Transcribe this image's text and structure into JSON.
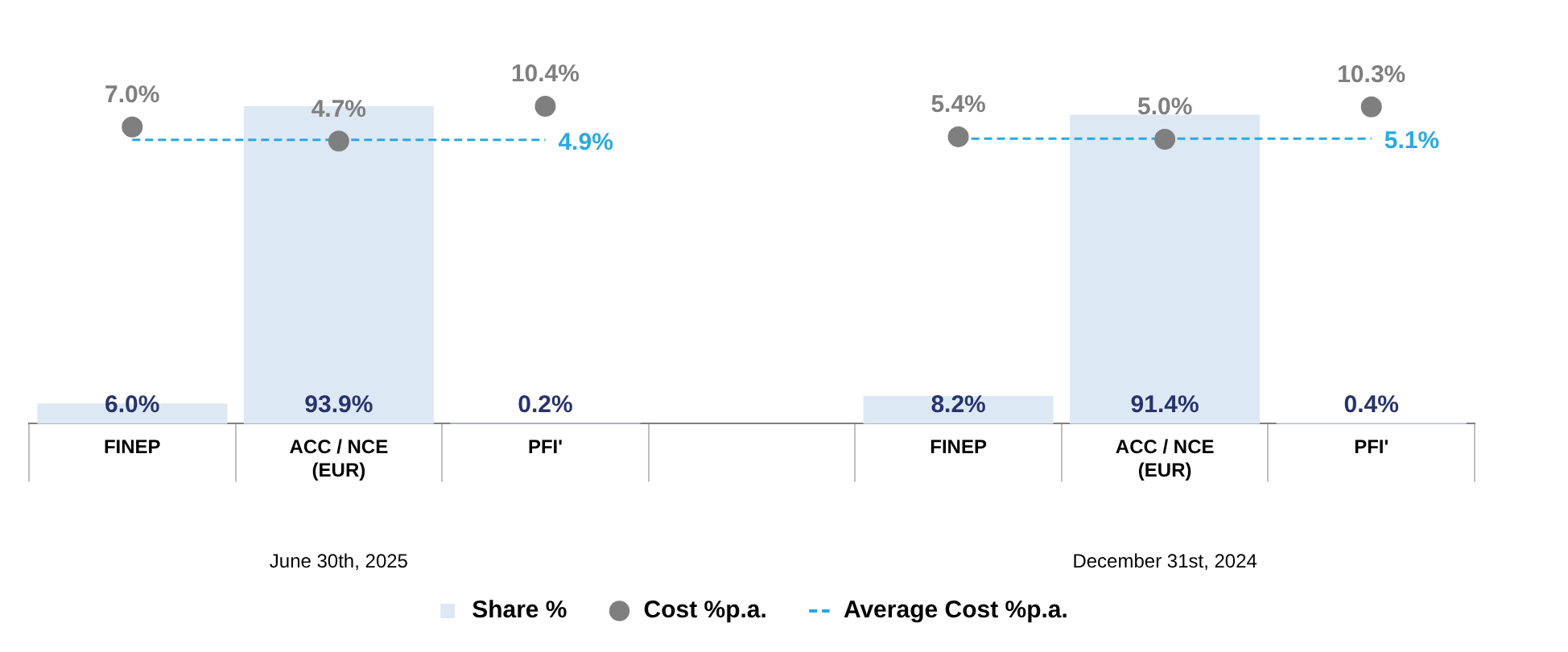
{
  "chart_data": {
    "type": "bar",
    "categories": [
      "FINEP",
      "ACC / NCE\n(EUR)",
      "PFI'",
      null,
      "FINEP",
      "ACC / NCE\n(EUR)",
      "PFI'"
    ],
    "series": [
      {
        "name": "Share %",
        "color": "#dde8f5",
        "values": [
          6.0,
          93.9,
          0.2,
          null,
          8.2,
          91.4,
          0.4
        ],
        "value_labels": [
          "6.0%",
          "93.9%",
          "0.2%",
          null,
          "8.2%",
          "91.4%",
          "0.4%"
        ]
      },
      {
        "name": "Cost %p.a.",
        "type": "scatter",
        "axis": "y2",
        "color": "#7f7f7f",
        "marker": "circle",
        "values": [
          7.0,
          4.7,
          10.4,
          null,
          5.4,
          5.0,
          10.3
        ],
        "value_labels": [
          "7.0%",
          "4.7%",
          "10.4%",
          null,
          "5.4%",
          "5.0%",
          "10.3%"
        ]
      },
      {
        "name": "Average Cost %p.a.",
        "type": "line",
        "axis": "y2",
        "color": "#29a9e1",
        "line_style": "dashed",
        "marker": "none",
        "values": [
          4.9,
          4.9,
          4.9,
          null,
          5.1,
          5.1,
          5.1
        ],
        "value_labels": [
          null,
          null,
          "4.9%",
          null,
          null,
          null,
          "5.1%"
        ]
      }
    ],
    "tick_labels": "x",
    "annotations": [
      "June 30th, 2025",
      "December 31st, 2024"
    ],
    "legend": "bottom",
    "grid": false
  }
}
